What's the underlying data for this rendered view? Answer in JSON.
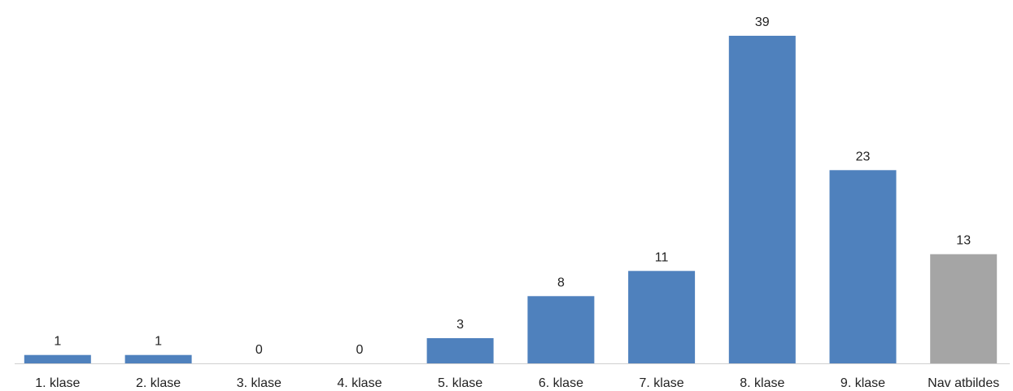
{
  "chart_data": {
    "type": "bar",
    "categories": [
      "1. klase",
      "2. klase",
      "3. klase",
      "4. klase",
      "5. klase",
      "6. klase",
      "7. klase",
      "8. klase",
      "9. klase",
      "Nav atbildes"
    ],
    "values": [
      1,
      1,
      0,
      0,
      3,
      8,
      11,
      39,
      23,
      13
    ],
    "data_labels": [
      "1",
      "1",
      "0",
      "0",
      "3",
      "8",
      "11",
      "39",
      "23",
      "13"
    ],
    "title": "",
    "xlabel": "",
    "ylabel": "",
    "ylim": [
      0,
      39
    ],
    "grid": false,
    "legend": "none",
    "colors": {
      "default": "#4F81BD",
      "highlight": "#A5A5A5",
      "axis": "#D0D0D0"
    },
    "bar_colors": [
      "default",
      "default",
      "default",
      "default",
      "default",
      "default",
      "default",
      "default",
      "default",
      "highlight"
    ]
  }
}
